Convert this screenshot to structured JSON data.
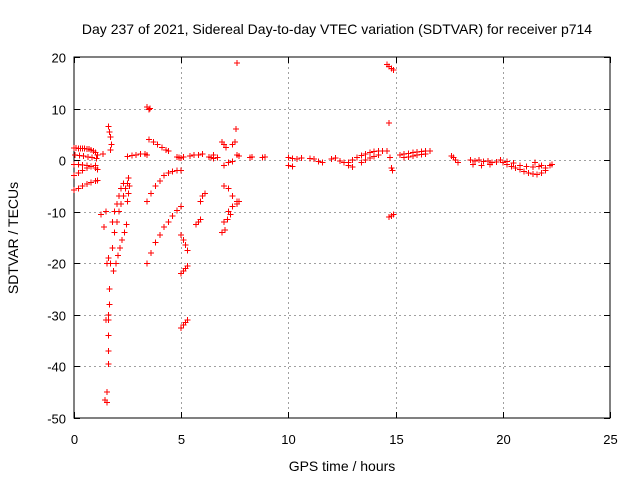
{
  "chart_data": {
    "type": "scatter",
    "title": "Day 237 of 2021, Sidereal Day-to-day VTEC variation (SDTVAR) for receiver p714",
    "xlabel": "GPS time / hours",
    "ylabel": "SDTVAR / TECUs",
    "xlim": [
      0,
      25
    ],
    "ylim": [
      -50,
      20
    ],
    "xticks": [
      0,
      5,
      10,
      15,
      20,
      25
    ],
    "yticks": [
      -50,
      -40,
      -30,
      -20,
      -10,
      0,
      10,
      20
    ],
    "xtick_labels": [
      "0",
      "5",
      "10",
      "15",
      "20",
      "25"
    ],
    "ytick_labels": [
      "-50",
      "-40",
      "-30",
      "-20",
      "-10",
      "0",
      "10",
      "20"
    ],
    "grid": true,
    "marker": "plus",
    "color": "#ff0000",
    "series": [
      {
        "name": "SDTVAR",
        "points": [
          [
            0.0,
            2.4
          ],
          [
            0.1,
            2.4
          ],
          [
            0.2,
            2.3
          ],
          [
            0.3,
            2.3
          ],
          [
            0.4,
            2.3
          ],
          [
            0.5,
            2.3
          ],
          [
            0.6,
            2.2
          ],
          [
            0.7,
            2.2
          ],
          [
            0.8,
            2.0
          ],
          [
            0.9,
            1.8
          ],
          [
            1.0,
            1.5
          ],
          [
            1.1,
            1.0
          ],
          [
            0.05,
            1.0
          ],
          [
            0.25,
            0.9
          ],
          [
            0.45,
            0.8
          ],
          [
            0.65,
            0.6
          ],
          [
            0.85,
            0.5
          ],
          [
            1.05,
            0.3
          ],
          [
            0.0,
            -0.8
          ],
          [
            0.2,
            -0.8
          ],
          [
            0.4,
            -0.9
          ],
          [
            0.6,
            -1.0
          ],
          [
            0.8,
            -1.2
          ],
          [
            1.0,
            -1.5
          ],
          [
            1.1,
            -1.8
          ],
          [
            0.0,
            -3.0
          ],
          [
            0.2,
            -2.5
          ],
          [
            0.4,
            -2.0
          ],
          [
            0.6,
            -1.5
          ],
          [
            0.8,
            -1.2
          ],
          [
            1.0,
            -1.0
          ],
          [
            0.0,
            -5.8
          ],
          [
            0.2,
            -5.5
          ],
          [
            0.4,
            -5.0
          ],
          [
            0.6,
            -4.6
          ],
          [
            0.8,
            -4.3
          ],
          [
            1.0,
            -4.0
          ],
          [
            1.1,
            -3.9
          ],
          [
            1.25,
            -10.5
          ],
          [
            1.35,
            1.2
          ],
          [
            1.4,
            -13.0
          ],
          [
            1.5,
            -10.0
          ],
          [
            1.6,
            6.5
          ],
          [
            1.65,
            5.5
          ],
          [
            1.7,
            4.5
          ],
          [
            1.7,
            2.0
          ],
          [
            1.75,
            3.0
          ],
          [
            1.55,
            -20.0
          ],
          [
            1.6,
            -19.0
          ],
          [
            1.5,
            -31.0
          ],
          [
            1.6,
            -30.0
          ],
          [
            1.65,
            -25.0
          ],
          [
            1.65,
            -28.0
          ],
          [
            1.62,
            -31.0
          ],
          [
            1.62,
            -34.0
          ],
          [
            1.62,
            -37.0
          ],
          [
            1.62,
            -39.5
          ],
          [
            1.45,
            -46.5
          ],
          [
            1.55,
            -47.0
          ],
          [
            1.55,
            -45.0
          ],
          [
            1.7,
            -20.0
          ],
          [
            1.8,
            -17.0
          ],
          [
            1.9,
            -14.0
          ],
          [
            2.0,
            -12.0
          ],
          [
            2.1,
            -10.0
          ],
          [
            2.2,
            -8.5
          ],
          [
            2.3,
            -7.0
          ],
          [
            2.4,
            -5.5
          ],
          [
            2.5,
            -4.5
          ],
          [
            2.55,
            -3.5
          ],
          [
            1.8,
            -12.0
          ],
          [
            1.9,
            -10.0
          ],
          [
            2.0,
            -8.5
          ],
          [
            2.1,
            -7.0
          ],
          [
            2.2,
            -5.5
          ],
          [
            2.3,
            -4.5
          ],
          [
            1.85,
            -21.5
          ],
          [
            1.95,
            -20.0
          ],
          [
            2.05,
            -18.5
          ],
          [
            2.15,
            -17.0
          ],
          [
            2.25,
            -15.5
          ],
          [
            2.35,
            -14.0
          ],
          [
            2.45,
            -12.5
          ],
          [
            2.5,
            -8.0
          ],
          [
            2.55,
            -6.5
          ],
          [
            2.6,
            -5.0
          ],
          [
            2.5,
            0.7
          ],
          [
            2.7,
            0.9
          ],
          [
            2.9,
            1.0
          ],
          [
            3.1,
            1.2
          ],
          [
            3.3,
            1.2
          ],
          [
            3.4,
            1.0
          ],
          [
            3.4,
            10.3
          ],
          [
            3.5,
            9.8
          ],
          [
            3.55,
            10.0
          ],
          [
            3.5,
            4.0
          ],
          [
            3.7,
            3.5
          ],
          [
            3.9,
            3.0
          ],
          [
            4.1,
            2.5
          ],
          [
            4.3,
            2.0
          ],
          [
            4.4,
            1.8
          ],
          [
            3.4,
            -8.0
          ],
          [
            3.6,
            -6.5
          ],
          [
            3.8,
            -5.0
          ],
          [
            4.0,
            -4.0
          ],
          [
            4.2,
            -3.0
          ],
          [
            4.4,
            -2.5
          ],
          [
            4.6,
            -2.2
          ],
          [
            4.8,
            -2.0
          ],
          [
            5.0,
            -2.0
          ],
          [
            3.4,
            -20.0
          ],
          [
            3.6,
            -18.0
          ],
          [
            3.8,
            -16.0
          ],
          [
            4.0,
            -14.5
          ],
          [
            4.2,
            -13.0
          ],
          [
            4.4,
            -12.0
          ],
          [
            4.6,
            -10.8
          ],
          [
            4.8,
            -9.8
          ],
          [
            5.0,
            -9.0
          ],
          [
            4.8,
            0.6
          ],
          [
            4.9,
            0.5
          ],
          [
            5.0,
            0.4
          ],
          [
            5.1,
            0.6
          ],
          [
            5.0,
            -14.5
          ],
          [
            5.1,
            -15.5
          ],
          [
            5.2,
            -16.5
          ],
          [
            5.3,
            -17.5
          ],
          [
            5.0,
            -22.0
          ],
          [
            5.1,
            -21.5
          ],
          [
            5.2,
            -21.0
          ],
          [
            5.3,
            -20.5
          ],
          [
            5.0,
            -32.5
          ],
          [
            5.1,
            -32.0
          ],
          [
            5.2,
            -31.5
          ],
          [
            5.3,
            -31.0
          ],
          [
            5.4,
            0.8
          ],
          [
            5.6,
            1.0
          ],
          [
            5.8,
            1.0
          ],
          [
            6.0,
            1.2
          ],
          [
            5.7,
            -12.5
          ],
          [
            5.8,
            -12.0
          ],
          [
            5.9,
            -11.5
          ],
          [
            5.9,
            -8.0
          ],
          [
            6.0,
            -7.0
          ],
          [
            6.1,
            -6.5
          ],
          [
            6.3,
            0.6
          ],
          [
            6.4,
            0.5
          ],
          [
            6.5,
            0.3
          ],
          [
            6.5,
            1.0
          ],
          [
            6.7,
            0.5
          ],
          [
            6.9,
            3.5
          ],
          [
            7.0,
            3.0
          ],
          [
            7.1,
            2.5
          ],
          [
            7.0,
            -1.0
          ],
          [
            7.2,
            -0.5
          ],
          [
            7.4,
            -0.3
          ],
          [
            7.4,
            3.0
          ],
          [
            7.5,
            3.5
          ],
          [
            7.0,
            -5.0
          ],
          [
            7.2,
            -5.5
          ],
          [
            7.4,
            -7.0
          ],
          [
            7.6,
            -8.0
          ],
          [
            6.9,
            -14.0
          ],
          [
            7.0,
            -12.0
          ],
          [
            7.2,
            -10.0
          ],
          [
            7.4,
            -9.0
          ],
          [
            7.6,
            -8.5
          ],
          [
            7.7,
            -8.0
          ],
          [
            7.05,
            -13.5
          ],
          [
            7.15,
            -11.5
          ],
          [
            7.3,
            -10.5
          ],
          [
            7.55,
            6.0
          ],
          [
            7.6,
            18.8
          ],
          [
            7.6,
            1.0
          ],
          [
            7.7,
            0.8
          ],
          [
            8.2,
            0.5
          ],
          [
            8.3,
            0.6
          ],
          [
            8.8,
            0.5
          ],
          [
            8.9,
            0.6
          ],
          [
            10.0,
            0.5
          ],
          [
            10.2,
            0.3
          ],
          [
            10.4,
            0.2
          ],
          [
            10.6,
            0.4
          ],
          [
            10.0,
            -1.0
          ],
          [
            10.2,
            -1.2
          ],
          [
            11.0,
            0.3
          ],
          [
            11.2,
            0.2
          ],
          [
            11.4,
            -0.3
          ],
          [
            11.6,
            -0.5
          ],
          [
            12.0,
            0.2
          ],
          [
            12.2,
            0.4
          ],
          [
            12.4,
            -0.2
          ],
          [
            12.6,
            -0.5
          ],
          [
            12.8,
            -1.0
          ],
          [
            13.0,
            -1.3
          ],
          [
            12.8,
            -0.5
          ],
          [
            13.0,
            0.0
          ],
          [
            13.2,
            0.5
          ],
          [
            13.4,
            0.9
          ],
          [
            13.6,
            1.2
          ],
          [
            13.8,
            1.5
          ],
          [
            14.0,
            1.7
          ],
          [
            14.2,
            1.8
          ],
          [
            14.4,
            1.8
          ],
          [
            14.6,
            1.8
          ],
          [
            13.4,
            -0.5
          ],
          [
            13.6,
            0.0
          ],
          [
            13.8,
            0.4
          ],
          [
            14.0,
            0.7
          ],
          [
            14.2,
            1.0
          ],
          [
            14.6,
            18.5
          ],
          [
            14.7,
            18.2
          ],
          [
            14.8,
            17.8
          ],
          [
            14.9,
            17.5
          ],
          [
            14.7,
            7.2
          ],
          [
            14.75,
            0.5
          ],
          [
            14.8,
            -1.5
          ],
          [
            14.85,
            -2.0
          ],
          [
            14.7,
            -11.0
          ],
          [
            14.8,
            -10.8
          ],
          [
            14.9,
            -10.5
          ],
          [
            15.2,
            1.0
          ],
          [
            15.4,
            1.2
          ],
          [
            15.6,
            1.3
          ],
          [
            15.8,
            1.5
          ],
          [
            16.0,
            1.6
          ],
          [
            16.2,
            1.7
          ],
          [
            16.4,
            1.8
          ],
          [
            16.6,
            1.8
          ],
          [
            15.4,
            0.5
          ],
          [
            15.6,
            0.6
          ],
          [
            15.8,
            0.8
          ],
          [
            16.0,
            1.0
          ],
          [
            16.2,
            1.1
          ],
          [
            16.4,
            1.2
          ],
          [
            17.6,
            0.8
          ],
          [
            17.7,
            0.5
          ],
          [
            17.8,
            0.0
          ],
          [
            17.9,
            -0.5
          ],
          [
            18.5,
            0.0
          ],
          [
            18.7,
            -0.2
          ],
          [
            18.9,
            0.0
          ],
          [
            19.1,
            -0.3
          ],
          [
            19.3,
            -0.2
          ],
          [
            19.5,
            -0.5
          ],
          [
            19.7,
            -0.4
          ],
          [
            19.9,
            0.0
          ],
          [
            18.6,
            -0.8
          ],
          [
            19.0,
            -1.0
          ],
          [
            19.4,
            -0.8
          ],
          [
            20.0,
            -0.5
          ],
          [
            20.2,
            -0.8
          ],
          [
            20.4,
            -1.2
          ],
          [
            20.6,
            -1.5
          ],
          [
            20.8,
            -1.8
          ],
          [
            21.0,
            -2.2
          ],
          [
            21.2,
            -2.5
          ],
          [
            21.4,
            -2.7
          ],
          [
            21.6,
            -2.8
          ],
          [
            21.8,
            -2.5
          ],
          [
            22.0,
            -2.0
          ],
          [
            20.2,
            -0.3
          ],
          [
            20.5,
            -0.6
          ],
          [
            20.8,
            -1.0
          ],
          [
            21.1,
            -1.2
          ],
          [
            21.4,
            -1.3
          ],
          [
            21.7,
            -1.2
          ],
          [
            21.5,
            -0.5
          ],
          [
            21.8,
            -1.0
          ],
          [
            22.0,
            -1.5
          ],
          [
            22.2,
            -1.0
          ],
          [
            22.3,
            -0.8
          ]
        ]
      }
    ]
  }
}
